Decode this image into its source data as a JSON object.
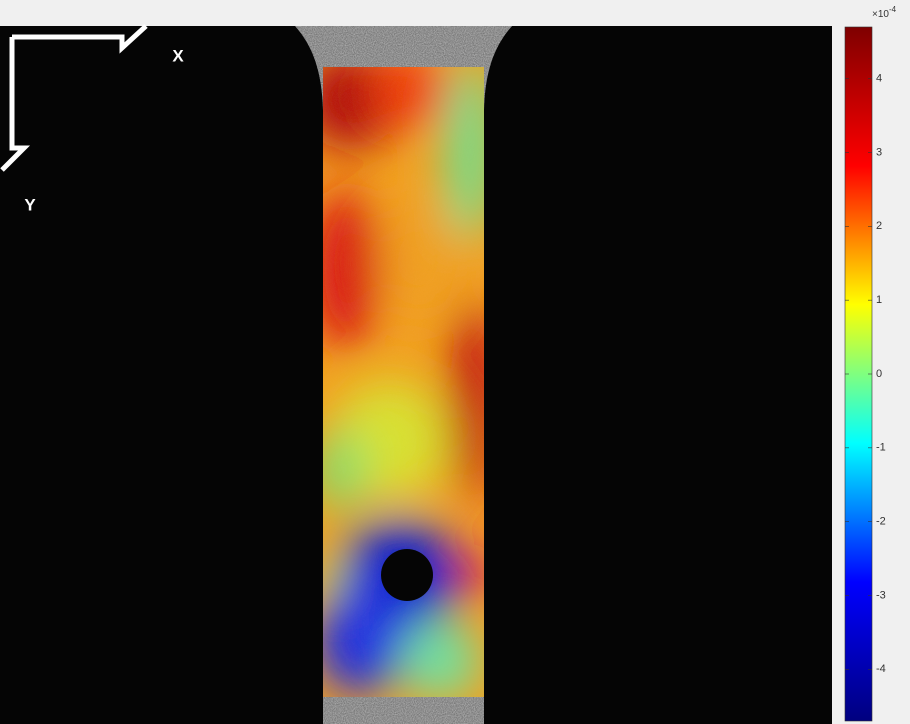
{
  "image": {
    "x_label": "X",
    "y_label": "Y"
  },
  "colorbar": {
    "exponent_base": "×10",
    "exponent": -4,
    "lim": [
      -4.7,
      4.7
    ],
    "ticks": [
      -4,
      -3,
      -2,
      -1,
      0,
      1,
      2,
      3,
      4
    ],
    "colors": [
      "#00007f",
      "#0000ff",
      "#00ffff",
      "#ffff00",
      "#ff0000",
      "#7f0000"
    ]
  }
}
